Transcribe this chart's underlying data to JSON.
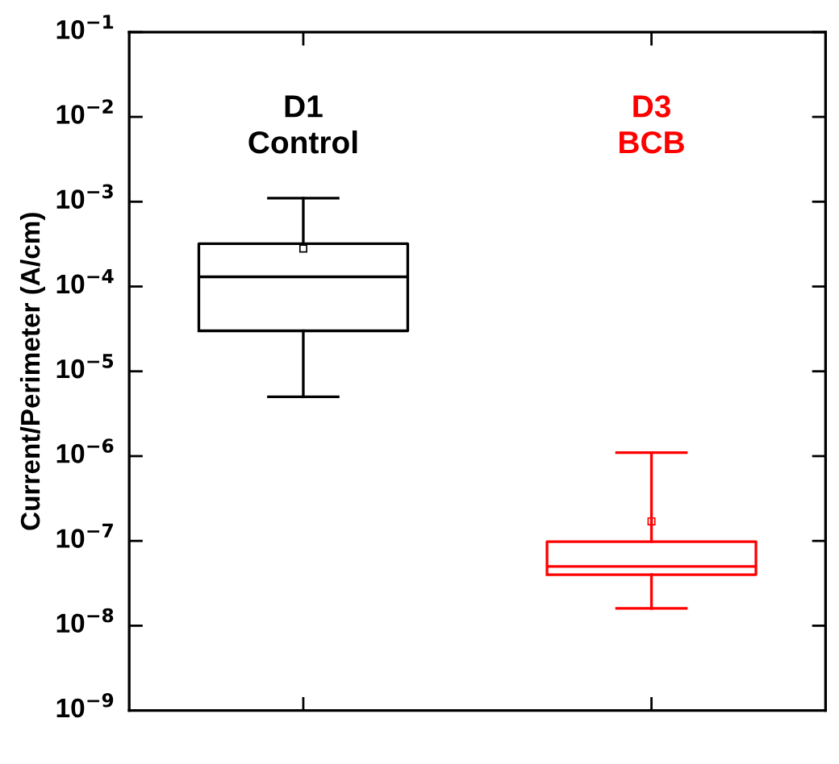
{
  "chart_data": {
    "type": "box",
    "ylabel": "Current/Perimeter (A/cm)",
    "categories": [
      null,
      null
    ],
    "boxes": [
      {
        "low": 5e-06,
        "q1": 3e-05,
        "median": 0.00013,
        "q3": 0.00032,
        "high": 0.0011,
        "mean": 0.00028
      },
      {
        "low": 1.6e-08,
        "q1": 4e-08,
        "median": 5e-08,
        "q3": 9.8e-08,
        "high": 1.1e-06,
        "mean": 1.7e-07
      }
    ],
    "colors": [
      "#000000",
      "#ff0000"
    ],
    "annotations": [
      "D1\nControl",
      "D3\nBCB"
    ],
    "log": true,
    "ylim": [
      1e-09,
      0.1
    ],
    "yticks": [
      {
        "value": 1e-09,
        "label": "10$^{−9}$"
      },
      {
        "value": 1e-08,
        "label": "10$^{−8}$"
      },
      {
        "value": 1e-07,
        "label": "10$^{−7}$"
      },
      {
        "value": 1e-06,
        "label": "10$^{−6}$"
      },
      {
        "value": 1e-05,
        "label": "10$^{−5}$"
      },
      {
        "value": 0.0001,
        "label": "10$^{−4}$"
      },
      {
        "value": 0.001,
        "label": "10$^{−3}$"
      },
      {
        "value": 0.01,
        "label": "10$^{−2}$"
      },
      {
        "value": 0.1,
        "label": "10$^{−1}$"
      }
    ],
    "grid": false,
    "legend": false
  }
}
